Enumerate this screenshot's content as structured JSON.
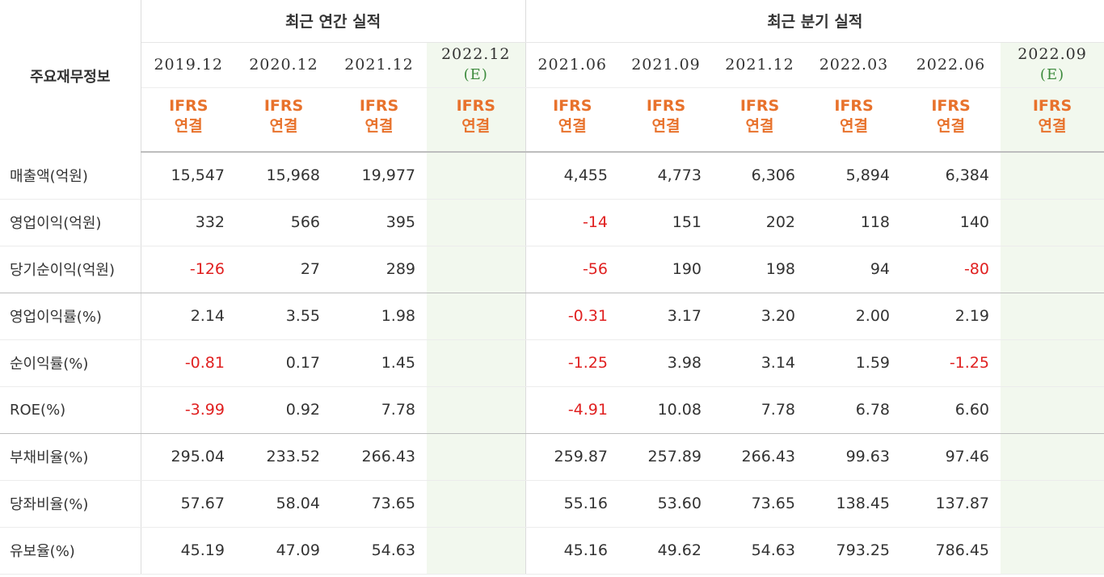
{
  "table": {
    "corner_label": "주요재무정보",
    "annual_group": "최근 연간 실적",
    "quarter_group": "최근 분기 실적",
    "periods": [
      {
        "label": "2019.12",
        "est": "",
        "type": "IFRS",
        "basis": "연결"
      },
      {
        "label": "2020.12",
        "est": "",
        "type": "IFRS",
        "basis": "연결"
      },
      {
        "label": "2021.12",
        "est": "",
        "type": "IFRS",
        "basis": "연결"
      },
      {
        "label": "2022.12",
        "est": "(E)",
        "type": "IFRS",
        "basis": "연결"
      },
      {
        "label": "2021.06",
        "est": "",
        "type": "IFRS",
        "basis": "연결"
      },
      {
        "label": "2021.09",
        "est": "",
        "type": "IFRS",
        "basis": "연결"
      },
      {
        "label": "2021.12",
        "est": "",
        "type": "IFRS",
        "basis": "연결"
      },
      {
        "label": "2022.03",
        "est": "",
        "type": "IFRS",
        "basis": "연결"
      },
      {
        "label": "2022.06",
        "est": "",
        "type": "IFRS",
        "basis": "연결"
      },
      {
        "label": "2022.09",
        "est": "(E)",
        "type": "IFRS",
        "basis": "연결"
      }
    ],
    "rows": [
      {
        "label": "매출액(억원)",
        "values": [
          "15,547",
          "15,968",
          "19,977",
          "",
          "4,455",
          "4,773",
          "6,306",
          "5,894",
          "6,384",
          ""
        ]
      },
      {
        "label": "영업이익(억원)",
        "values": [
          "332",
          "566",
          "395",
          "",
          "-14",
          "151",
          "202",
          "118",
          "140",
          ""
        ]
      },
      {
        "label": "당기순이익(억원)",
        "values": [
          "-126",
          "27",
          "289",
          "",
          "-56",
          "190",
          "198",
          "94",
          "-80",
          ""
        ]
      },
      {
        "label": "영업이익률(%)",
        "values": [
          "2.14",
          "3.55",
          "1.98",
          "",
          "-0.31",
          "3.17",
          "3.20",
          "2.00",
          "2.19",
          ""
        ]
      },
      {
        "label": "순이익률(%)",
        "values": [
          "-0.81",
          "0.17",
          "1.45",
          "",
          "-1.25",
          "3.98",
          "3.14",
          "1.59",
          "-1.25",
          ""
        ]
      },
      {
        "label": "ROE(%)",
        "values": [
          "-3.99",
          "0.92",
          "7.78",
          "",
          "-4.91",
          "10.08",
          "7.78",
          "6.78",
          "6.60",
          ""
        ]
      },
      {
        "label": "부채비율(%)",
        "values": [
          "295.04",
          "233.52",
          "266.43",
          "",
          "259.87",
          "257.89",
          "266.43",
          "99.63",
          "97.46",
          ""
        ]
      },
      {
        "label": "당좌비율(%)",
        "values": [
          "57.67",
          "58.04",
          "73.65",
          "",
          "55.16",
          "53.60",
          "73.65",
          "138.45",
          "137.87",
          ""
        ]
      },
      {
        "label": "유보율(%)",
        "values": [
          "45.19",
          "47.09",
          "54.63",
          "",
          "45.16",
          "49.62",
          "54.63",
          "793.25",
          "786.45",
          ""
        ]
      }
    ],
    "colors": {
      "negative": "#e02020",
      "ifrs": "#e8722c",
      "estimate": "#3d8b3d",
      "estimate_bg": "#f2f8ee"
    }
  }
}
